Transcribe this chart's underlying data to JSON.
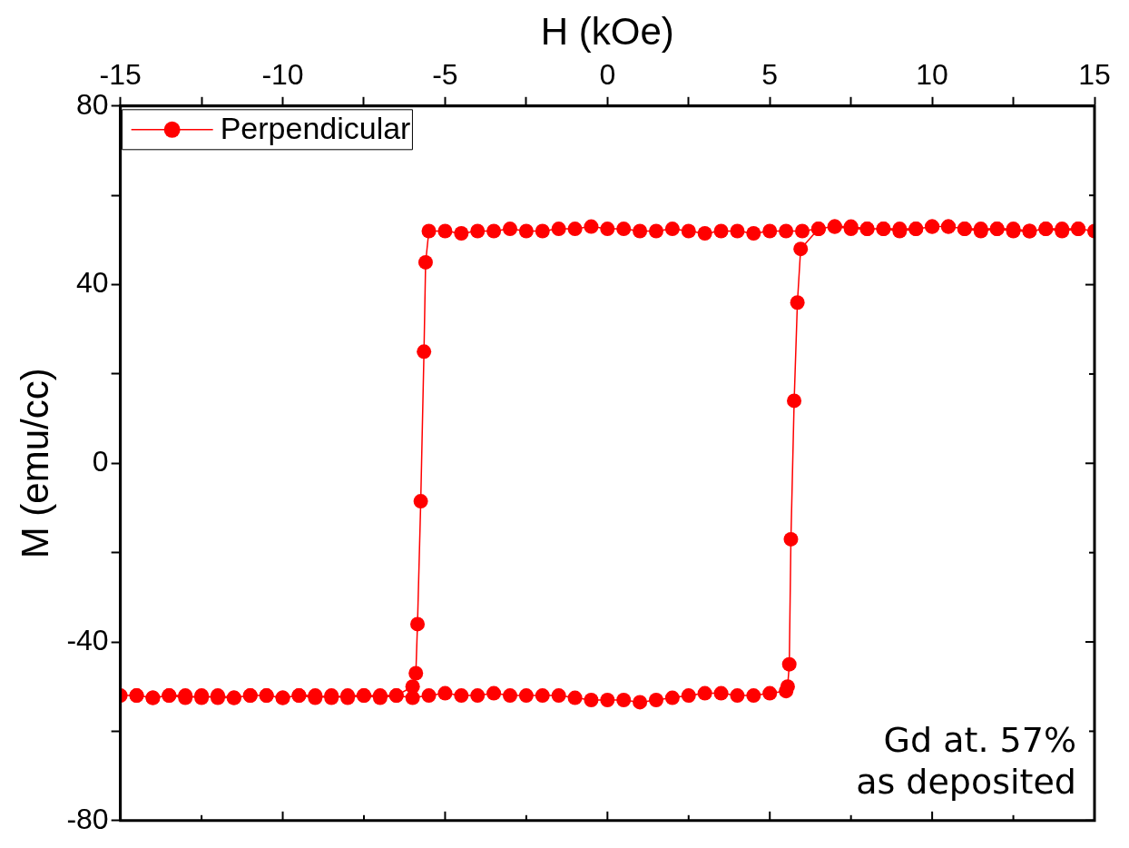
{
  "chart_data": {
    "type": "line",
    "xlabel": "H (kOe)",
    "ylabel": "M (emu/cc)",
    "xlim": [
      -15,
      15
    ],
    "ylim": [
      -80,
      80
    ],
    "xticks": [
      -15,
      {
        "value": -12.5,
        "label": null
      },
      -10,
      {
        "value": -7.5,
        "label": null
      },
      -5,
      {
        "value": -2.5,
        "label": null
      },
      0,
      {
        "value": 2.5,
        "label": null
      },
      5,
      {
        "value": 7.5,
        "label": null
      },
      10,
      {
        "value": 12.5,
        "label": null
      },
      15
    ],
    "yticks": [
      -80,
      {
        "value": -60,
        "label": null
      },
      -40,
      {
        "value": -20,
        "label": null
      },
      0,
      {
        "value": 20,
        "label": null
      },
      40,
      {
        "value": 60,
        "label": null
      },
      80
    ],
    "grid": false,
    "legend": "top left",
    "marker": "circle",
    "line_style": "solid",
    "annotations": [
      "Gd at. 57%",
      "as deposited"
    ],
    "series": [
      {
        "name": "Perpendicular",
        "color": "#ff0000",
        "x": [
          15,
          14.5,
          14,
          13.5,
          13,
          12.5,
          12,
          11.5,
          11,
          10.5,
          10,
          9.5,
          9,
          8.5,
          8,
          7.5,
          7,
          6.5,
          6,
          5.5,
          5,
          4.5,
          4,
          3.5,
          3,
          2.5,
          2,
          1.5,
          1,
          0.5,
          0,
          -0.5,
          -1,
          -1.5,
          -2,
          -2.5,
          -3,
          -3.5,
          -4,
          -4.5,
          -5,
          -5.5,
          -5.6,
          -5.65,
          -5.75,
          -5.85,
          -5.9,
          -6,
          -6.5,
          -7,
          -7.5,
          -8,
          -8.5,
          -9,
          -9.5,
          -10,
          -10.5,
          -11,
          -11.5,
          -12,
          -12.5,
          -13,
          -13.5,
          -14,
          -14.5,
          -15,
          -14.5,
          -14,
          -13.5,
          -13,
          -12.5,
          -12,
          -11.5,
          -11,
          -10.5,
          -10,
          -9.5,
          -9,
          -8.5,
          -8,
          -7.5,
          -7,
          -6.5,
          -6,
          -5.5,
          -5,
          -4.5,
          -4,
          -3.5,
          -3,
          -2.5,
          -2,
          -1.5,
          -1,
          -0.5,
          0,
          0.5,
          1,
          1.5,
          2,
          2.5,
          3,
          3.5,
          4,
          4.5,
          5,
          5.5,
          5.55,
          5.6,
          5.65,
          5.75,
          5.85,
          5.95,
          6.5,
          7,
          7.5,
          8,
          8.5,
          9,
          9.5,
          10,
          10.5,
          11,
          11.5,
          12,
          12.5,
          13,
          13.5,
          14,
          14.5
        ],
        "values": [
          52,
          52.5,
          52,
          52.5,
          52,
          52,
          52.5,
          52,
          52.5,
          53,
          53,
          52.5,
          52,
          52.5,
          52.5,
          52.5,
          53,
          52.5,
          52,
          52,
          52,
          51.5,
          52,
          52,
          51.5,
          52,
          52.5,
          52,
          52,
          52.5,
          52.5,
          53,
          52.5,
          52.5,
          52,
          52,
          52.5,
          52,
          52,
          51.5,
          52,
          52,
          45,
          25,
          -8.5,
          -36,
          -47,
          -50,
          -52,
          -52.5,
          -52,
          -52.5,
          -52,
          -52.5,
          -52,
          -52.5,
          -52,
          -52,
          -52.5,
          -52,
          -52.5,
          -52,
          -52,
          -52.5,
          -52,
          -52,
          -52,
          -52.5,
          -52,
          -52.5,
          -52,
          -52.5,
          -52.5,
          -52,
          -52,
          -52.5,
          -52,
          -52,
          -52.5,
          -52,
          -52,
          -52,
          -52,
          -52.5,
          -52,
          -51.5,
          -52,
          -52,
          -51.5,
          -52,
          -52,
          -52,
          -52,
          -52.5,
          -53,
          -53,
          -53,
          -53.5,
          -53,
          -52.5,
          -52,
          -51.5,
          -51.5,
          -52,
          -52,
          -51.5,
          -51,
          -50,
          -45,
          -17,
          14,
          36,
          48,
          52.5,
          53,
          53,
          52.5,
          52.5,
          52.5,
          52.5,
          53,
          53,
          52.5,
          52.5,
          52.5,
          52.5,
          52,
          52.5,
          52.5,
          52.5
        ]
      }
    ]
  }
}
